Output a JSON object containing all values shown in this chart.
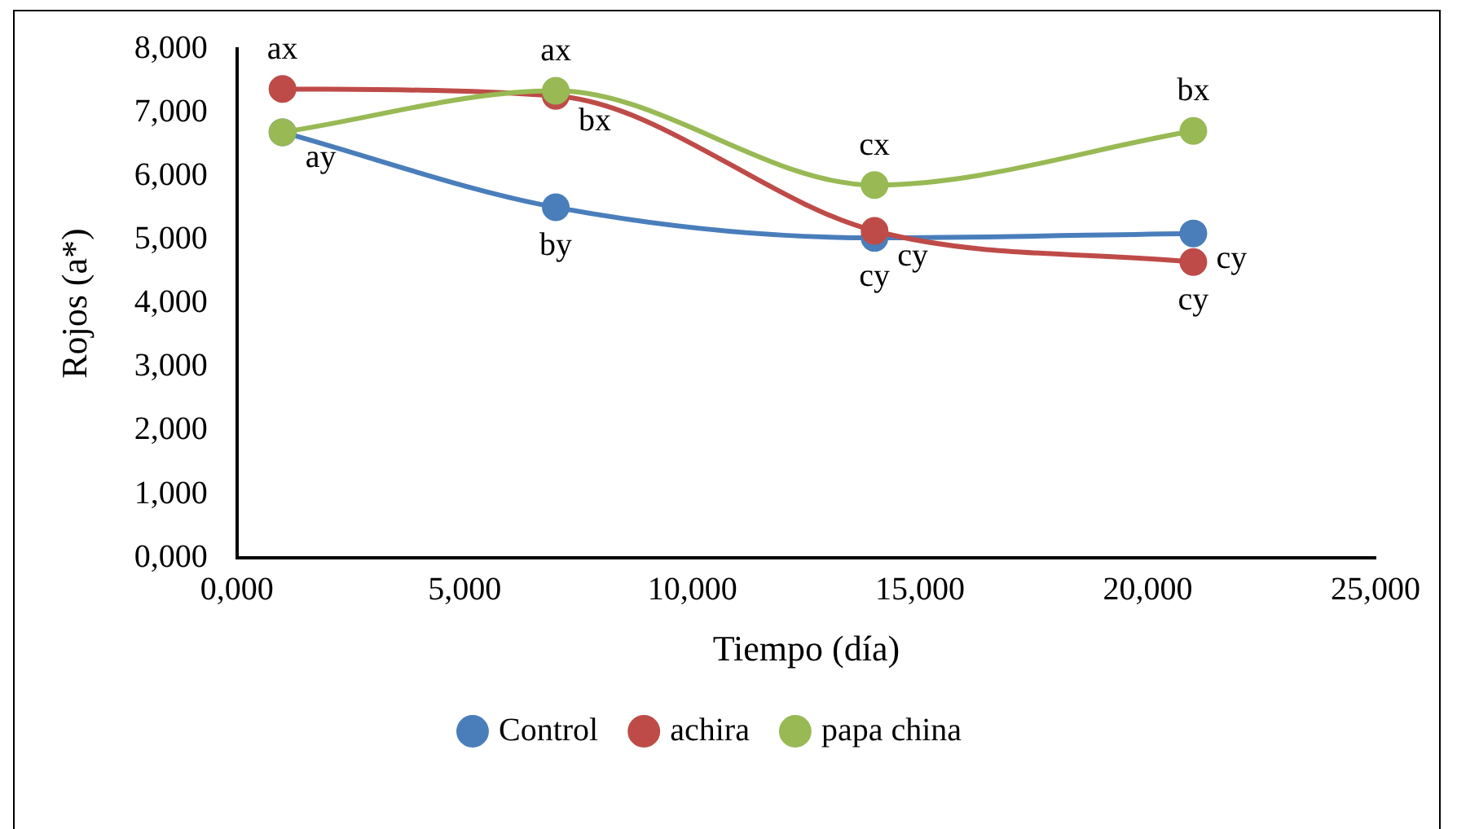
{
  "chart_data": {
    "type": "line",
    "xlabel": "Tiempo (día)",
    "ylabel": "Rojos (a*)",
    "x": [
      1,
      7,
      14,
      21
    ],
    "series": [
      {
        "name": "Control",
        "color": "#4a7ebb",
        "values": [
          6.69,
          5.51,
          5.03,
          5.1
        ],
        "value_labels": [
          "ay",
          "by",
          "cy",
          "cy"
        ]
      },
      {
        "name": "achira",
        "color": "#be4b48",
        "values": [
          7.37,
          7.26,
          5.14,
          4.65
        ],
        "value_labels": [
          "ax",
          "bx",
          "cy",
          "cy"
        ]
      },
      {
        "name": "papa china",
        "color": "#98b954",
        "values": [
          6.69,
          7.34,
          5.86,
          6.71
        ],
        "value_labels": [
          null,
          "ax",
          "cx",
          "bx"
        ]
      }
    ],
    "xlim": [
      0,
      25
    ],
    "xticks": [
      {
        "value": 0,
        "label": "0,000"
      },
      {
        "value": 5,
        "label": "5,000"
      },
      {
        "value": 10,
        "label": "10,000"
      },
      {
        "value": 15,
        "label": "15,000"
      },
      {
        "value": 20,
        "label": "20,000"
      },
      {
        "value": 25,
        "label": "25,000"
      }
    ],
    "ylim": [
      0,
      8
    ],
    "yticks": [
      {
        "value": 0,
        "label": "0,000"
      },
      {
        "value": 1,
        "label": "1,000"
      },
      {
        "value": 2,
        "label": "2,000"
      },
      {
        "value": 3,
        "label": "3,000"
      },
      {
        "value": 4,
        "label": "4,000"
      },
      {
        "value": 5,
        "label": "5,000"
      },
      {
        "value": 6,
        "label": "6,000"
      },
      {
        "value": 7,
        "label": "7,000"
      },
      {
        "value": 8,
        "label": "8,000"
      }
    ],
    "grid": false,
    "legend": "bottom",
    "marker": "circle",
    "line_style": "solid"
  }
}
